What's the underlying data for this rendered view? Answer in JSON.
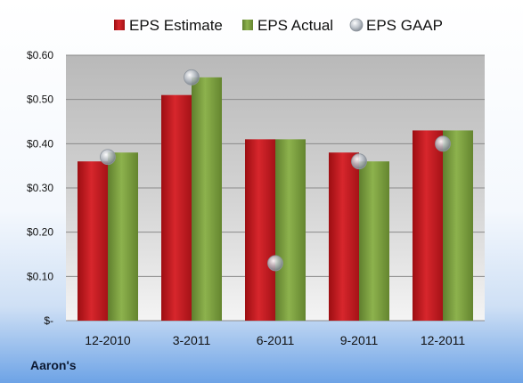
{
  "chart_data": {
    "type": "bar",
    "categories": [
      "12-2010",
      "3-2011",
      "6-2011",
      "9-2011",
      "12-2011"
    ],
    "series": [
      {
        "name": "EPS Estimate",
        "kind": "bar",
        "color": "#c8161d",
        "values": [
          0.36,
          0.51,
          0.41,
          0.38,
          0.43
        ]
      },
      {
        "name": "EPS Actual",
        "kind": "bar",
        "color": "#7fa441",
        "values": [
          0.38,
          0.55,
          0.41,
          0.36,
          0.43
        ]
      },
      {
        "name": "EPS GAAP",
        "kind": "scatter",
        "color": "#a8aeb6",
        "values": [
          0.37,
          0.55,
          0.13,
          0.36,
          0.4
        ]
      }
    ],
    "y_ticks": [
      {
        "value": 0.0,
        "label": "$-"
      },
      {
        "value": 0.1,
        "label": "$0.10"
      },
      {
        "value": 0.2,
        "label": "$0.20"
      },
      {
        "value": 0.3,
        "label": "$0.30"
      },
      {
        "value": 0.4,
        "label": "$0.40"
      },
      {
        "value": 0.5,
        "label": "$0.50"
      },
      {
        "value": 0.6,
        "label": "$0.60"
      }
    ],
    "ylim": [
      0,
      0.6
    ],
    "grid": true,
    "legend_position": "top"
  },
  "footer": {
    "company": "Aaron's"
  }
}
